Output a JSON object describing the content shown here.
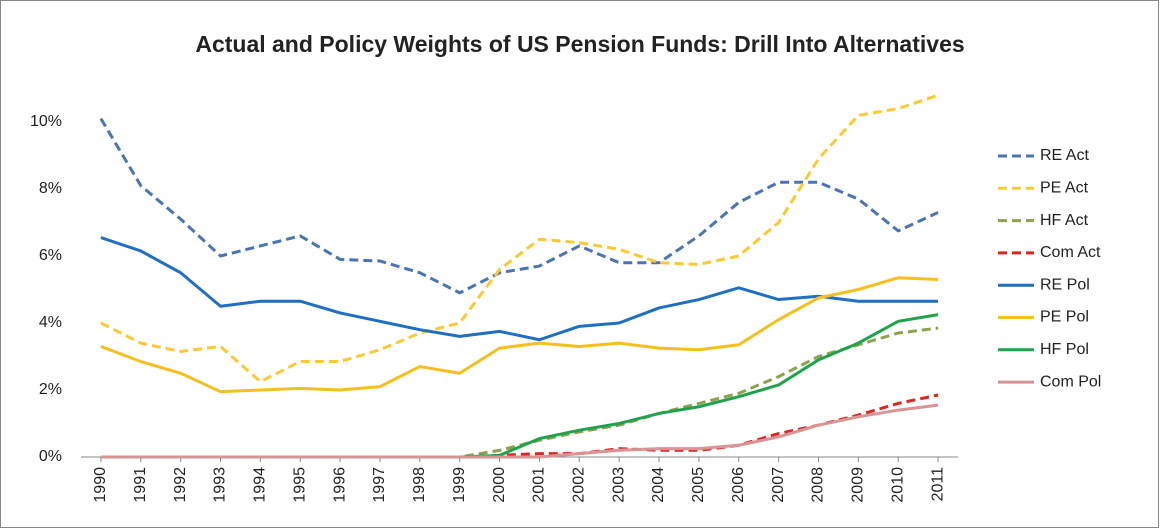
{
  "chart_data": {
    "type": "line",
    "title": "Actual and Policy Weights of US Pension Funds: Drill Into Alternatives",
    "categories": [
      "1990",
      "1991",
      "1992",
      "1993",
      "1994",
      "1995",
      "1996",
      "1997",
      "1998",
      "1999",
      "2000",
      "2001",
      "2002",
      "2003",
      "2004",
      "2005",
      "2006",
      "2007",
      "2008",
      "2009",
      "2010",
      "2011"
    ],
    "ylim": [
      0,
      11
    ],
    "yticks": [
      {
        "value": 0,
        "label": "0%"
      },
      {
        "value": 2,
        "label": "2%"
      },
      {
        "value": 4,
        "label": "4%"
      },
      {
        "value": 6,
        "label": "6%"
      },
      {
        "value": 8,
        "label": "8%"
      },
      {
        "value": 10,
        "label": "10%"
      }
    ],
    "grid": false,
    "legend": "right",
    "series": [
      {
        "name": "RE Act",
        "color": "#4a74b4",
        "style": "dashed",
        "values": [
          10.1,
          8.1,
          7.1,
          6.0,
          6.3,
          6.6,
          5.9,
          5.85,
          5.5,
          4.9,
          5.5,
          5.7,
          6.3,
          5.8,
          5.8,
          6.6,
          7.6,
          8.2,
          8.2,
          7.7,
          6.75,
          7.3
        ]
      },
      {
        "name": "PE Act",
        "color": "#fbc934",
        "style": "dashed",
        "values": [
          4.0,
          3.4,
          3.15,
          3.3,
          2.25,
          2.85,
          2.85,
          3.2,
          3.7,
          4.0,
          5.6,
          6.5,
          6.4,
          6.2,
          5.8,
          5.75,
          6.0,
          7.0,
          8.9,
          10.2,
          10.4,
          10.8
        ]
      },
      {
        "name": "HF Act",
        "color": "#8ca24f",
        "style": "dashed",
        "values": [
          0,
          0,
          0,
          0,
          0,
          0,
          0,
          0,
          0,
          0,
          0.2,
          0.5,
          0.75,
          0.95,
          1.3,
          1.6,
          1.9,
          2.4,
          3.0,
          3.35,
          3.7,
          3.85
        ]
      },
      {
        "name": "Com Act",
        "color": "#e02424",
        "style": "dashed",
        "values": [
          0,
          0,
          0,
          0,
          0,
          0,
          0,
          0,
          0,
          0,
          0.05,
          0.1,
          0.1,
          0.25,
          0.2,
          0.2,
          0.35,
          0.7,
          0.95,
          1.25,
          1.6,
          1.85
        ]
      },
      {
        "name": "RE Pol",
        "color": "#1f6fc4",
        "style": "solid",
        "values": [
          6.55,
          6.15,
          5.5,
          4.5,
          4.65,
          4.65,
          4.3,
          4.05,
          3.8,
          3.6,
          3.75,
          3.5,
          3.9,
          4.0,
          4.45,
          4.7,
          5.05,
          4.7,
          4.8,
          4.65,
          4.65,
          4.65
        ]
      },
      {
        "name": "PE Pol",
        "color": "#f5bf1e",
        "style": "solid",
        "values": [
          3.3,
          2.85,
          2.5,
          1.95,
          2.0,
          2.05,
          2.0,
          2.1,
          2.7,
          2.5,
          3.25,
          3.4,
          3.3,
          3.4,
          3.25,
          3.2,
          3.35,
          4.1,
          4.75,
          5.0,
          5.35,
          5.3
        ]
      },
      {
        "name": "HF Pol",
        "color": "#1ea34b",
        "style": "solid",
        "values": [
          0,
          0,
          0,
          0,
          0,
          0,
          0,
          0,
          0,
          0,
          0.05,
          0.55,
          0.8,
          1.0,
          1.3,
          1.5,
          1.8,
          2.15,
          2.9,
          3.4,
          4.05,
          4.25
        ]
      },
      {
        "name": "Com Pol",
        "color": "#d99595",
        "style": "solid",
        "values": [
          0,
          0,
          0,
          0,
          0,
          0,
          0,
          0,
          0,
          0,
          0,
          0,
          0.1,
          0.2,
          0.25,
          0.25,
          0.35,
          0.6,
          0.95,
          1.2,
          1.4,
          1.55
        ]
      }
    ]
  }
}
